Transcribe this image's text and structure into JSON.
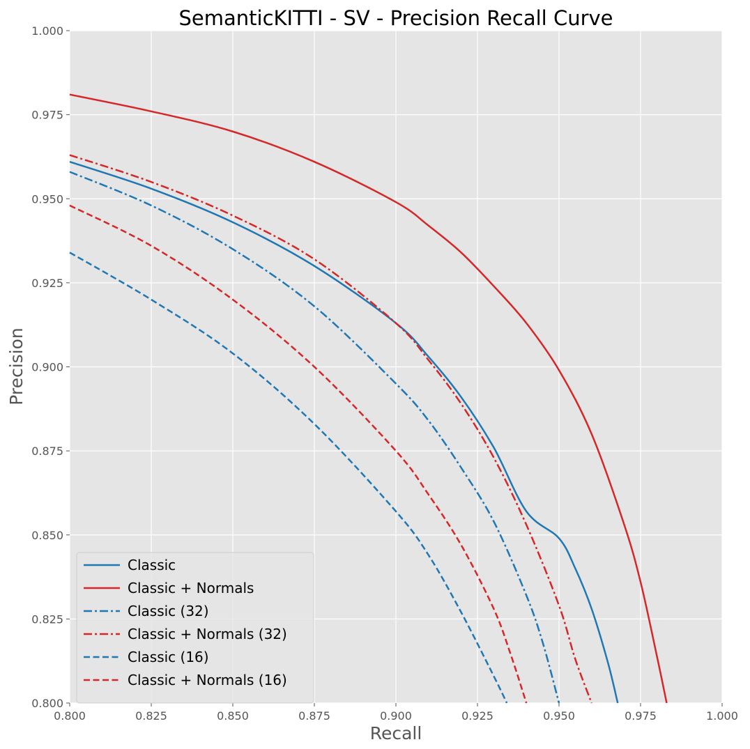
{
  "chart_data": {
    "type": "line",
    "title": "SemanticKITTI - SV - Precision Recall Curve",
    "xlabel": "Recall",
    "ylabel": "Precision",
    "xlim": [
      0.8,
      1.0
    ],
    "ylim": [
      0.8,
      1.0
    ],
    "xticks": [
      "0.800",
      "0.825",
      "0.850",
      "0.875",
      "0.900",
      "0.925",
      "0.950",
      "0.975",
      "1.000"
    ],
    "yticks": [
      "0.800",
      "0.825",
      "0.850",
      "0.875",
      "0.900",
      "0.925",
      "0.950",
      "0.975",
      "1.000"
    ],
    "grid": true,
    "legend_position": "lower-left",
    "background": "#e5e5e5",
    "series": [
      {
        "name": "Classic",
        "color": "#1f77b4",
        "style": "solid",
        "x": [
          0.8,
          0.825,
          0.85,
          0.875,
          0.9,
          0.91,
          0.92,
          0.93,
          0.94,
          0.95,
          0.955,
          0.96,
          0.965,
          0.968
        ],
        "y": [
          0.961,
          0.953,
          0.943,
          0.93,
          0.913,
          0.903,
          0.891,
          0.876,
          0.857,
          0.849,
          0.84,
          0.828,
          0.812,
          0.8
        ]
      },
      {
        "name": "Classic + Normals",
        "color": "#d62728",
        "style": "solid",
        "x": [
          0.8,
          0.825,
          0.85,
          0.875,
          0.9,
          0.91,
          0.92,
          0.93,
          0.94,
          0.95,
          0.96,
          0.97,
          0.975,
          0.98,
          0.983
        ],
        "y": [
          0.981,
          0.976,
          0.97,
          0.961,
          0.949,
          0.942,
          0.934,
          0.924,
          0.913,
          0.899,
          0.88,
          0.853,
          0.836,
          0.814,
          0.8
        ]
      },
      {
        "name": "Classic (32)",
        "color": "#1f77b4",
        "style": "dashdot",
        "x": [
          0.8,
          0.825,
          0.85,
          0.875,
          0.9,
          0.91,
          0.92,
          0.93,
          0.94,
          0.945,
          0.95
        ],
        "y": [
          0.958,
          0.948,
          0.935,
          0.918,
          0.895,
          0.884,
          0.87,
          0.854,
          0.832,
          0.818,
          0.8
        ]
      },
      {
        "name": "Classic + Normals (32)",
        "color": "#d62728",
        "style": "dashdot",
        "x": [
          0.8,
          0.825,
          0.85,
          0.875,
          0.9,
          0.91,
          0.92,
          0.93,
          0.94,
          0.95,
          0.955,
          0.96
        ],
        "y": [
          0.963,
          0.955,
          0.945,
          0.932,
          0.913,
          0.902,
          0.889,
          0.873,
          0.853,
          0.829,
          0.813,
          0.8
        ]
      },
      {
        "name": "Classic (16)",
        "color": "#1f77b4",
        "style": "dashed",
        "x": [
          0.8,
          0.825,
          0.85,
          0.875,
          0.9,
          0.91,
          0.92,
          0.93,
          0.934
        ],
        "y": [
          0.934,
          0.92,
          0.904,
          0.883,
          0.857,
          0.844,
          0.827,
          0.808,
          0.8
        ]
      },
      {
        "name": "Classic + Normals (16)",
        "color": "#d62728",
        "style": "dashed",
        "x": [
          0.8,
          0.825,
          0.85,
          0.875,
          0.9,
          0.91,
          0.92,
          0.93,
          0.935,
          0.94
        ],
        "y": [
          0.948,
          0.936,
          0.92,
          0.9,
          0.875,
          0.862,
          0.847,
          0.828,
          0.815,
          0.8
        ]
      }
    ]
  }
}
